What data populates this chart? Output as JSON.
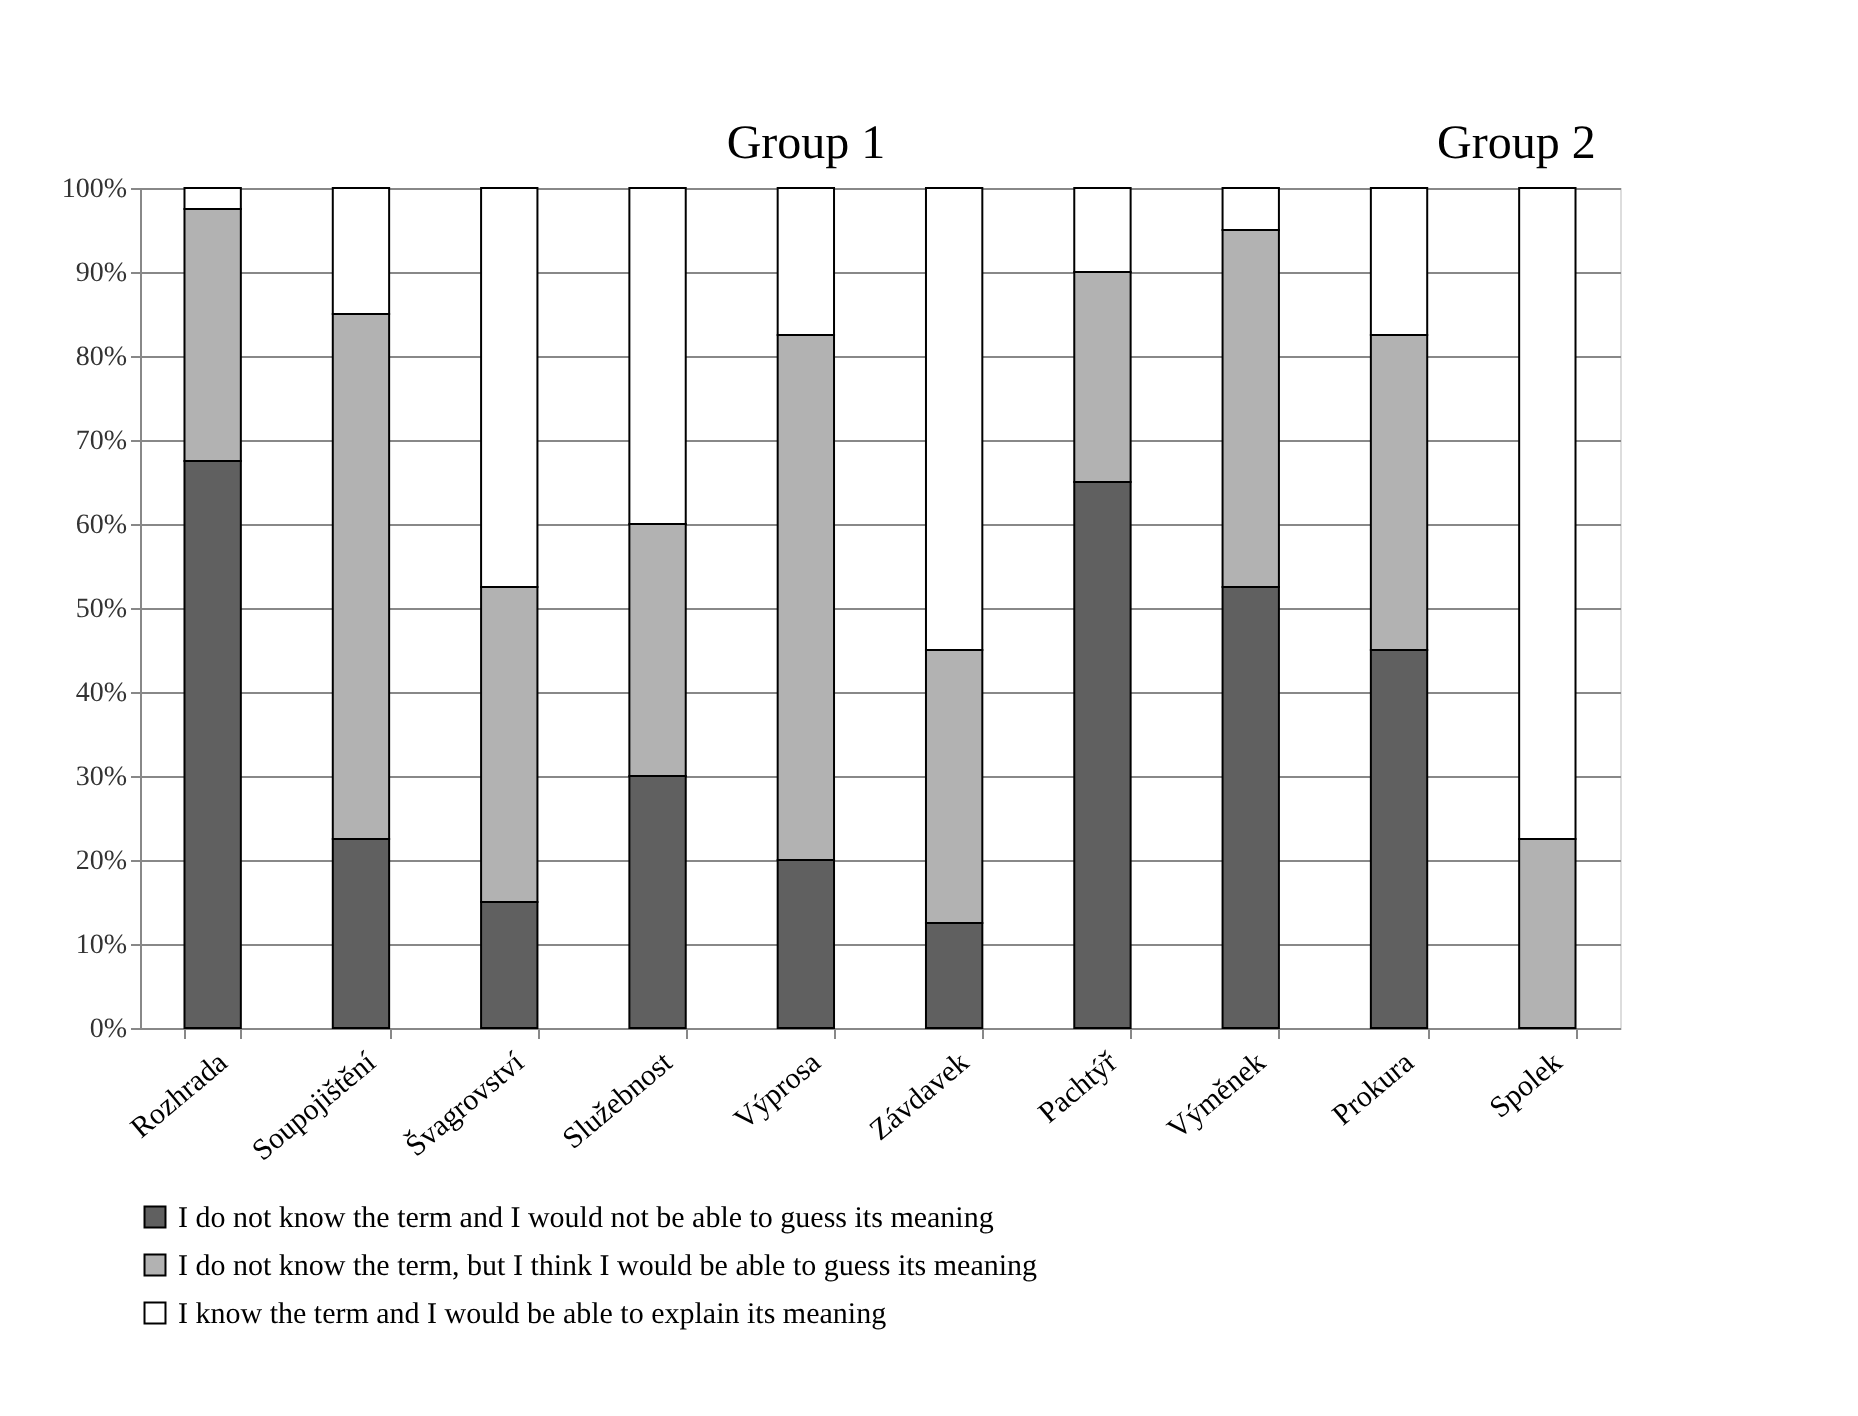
{
  "chart_data": {
    "type": "bar",
    "stacked": true,
    "categories": [
      "Rozhrada",
      "Soupojištění",
      "Švagrovství",
      "Služebnost",
      "Výprosa",
      "Závdavek",
      "Pachtýř",
      "Výměnek",
      "Prokura",
      "Spolek"
    ],
    "series": [
      {
        "name": "I do not know the term and I would not be able to guess its meaning",
        "color": "#606060",
        "values": [
          67.5,
          22.5,
          15,
          30,
          20,
          12.5,
          65,
          52.5,
          45,
          0
        ]
      },
      {
        "name": "I do not know the term, but I think I would be able to guess its meaning",
        "color": "#b2b2b2",
        "values": [
          30,
          62.5,
          37.5,
          30,
          62.5,
          32.5,
          25,
          42.5,
          37.5,
          22.5
        ]
      },
      {
        "name": "I know the term and I would be able to explain its meaning",
        "color": "#ffffff",
        "values": [
          2.5,
          15,
          47.5,
          40,
          17.5,
          55,
          10,
          5,
          17.5,
          77.5
        ]
      }
    ],
    "ylim": [
      0,
      100
    ],
    "yticks": [
      {
        "value": 0,
        "label": "0%"
      },
      {
        "value": 10,
        "label": "10%"
      },
      {
        "value": 20,
        "label": "20%"
      },
      {
        "value": 30,
        "label": "30%"
      },
      {
        "value": 40,
        "label": "40%"
      },
      {
        "value": 50,
        "label": "50%"
      },
      {
        "value": 60,
        "label": "60%"
      },
      {
        "value": 70,
        "label": "70%"
      },
      {
        "value": 80,
        "label": "80%"
      },
      {
        "value": 90,
        "label": "90%"
      },
      {
        "value": 100,
        "label": "100%"
      }
    ],
    "grid": "y",
    "legend": "bottom",
    "annotations": [
      "Group 1",
      "Group 2"
    ]
  }
}
